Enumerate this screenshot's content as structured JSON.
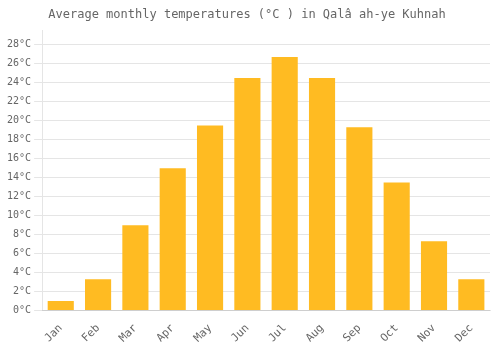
{
  "chart_data": {
    "type": "bar",
    "title": "Average monthly temperatures (°C ) in Qalâ ah-ye Kuhnah",
    "categories": [
      "Jan",
      "Feb",
      "Mar",
      "Apr",
      "May",
      "Jun",
      "Jul",
      "Aug",
      "Sep",
      "Oct",
      "Nov",
      "Dec"
    ],
    "values": [
      1.0,
      3.3,
      9.0,
      15.0,
      19.5,
      24.5,
      26.7,
      24.5,
      19.3,
      13.5,
      7.3,
      3.3
    ],
    "color": "#FFBB22",
    "ylim": [
      0,
      29.5
    ],
    "yticks": [
      {
        "value": 0,
        "label": "0°C"
      },
      {
        "value": 2,
        "label": "2°C"
      },
      {
        "value": 4,
        "label": "4°C"
      },
      {
        "value": 6,
        "label": "6°C"
      },
      {
        "value": 8,
        "label": "8°C"
      },
      {
        "value": 10,
        "label": "10°C"
      },
      {
        "value": 12,
        "label": "12°C"
      },
      {
        "value": 14,
        "label": "14°C"
      },
      {
        "value": 16,
        "label": "16°C"
      },
      {
        "value": 18,
        "label": "18°C"
      },
      {
        "value": 20,
        "label": "20°C"
      },
      {
        "value": 22,
        "label": "22°C"
      },
      {
        "value": 24,
        "label": "24°C"
      },
      {
        "value": 26,
        "label": "26°C"
      },
      {
        "value": 28,
        "label": "28°C"
      }
    ],
    "grid": true
  }
}
